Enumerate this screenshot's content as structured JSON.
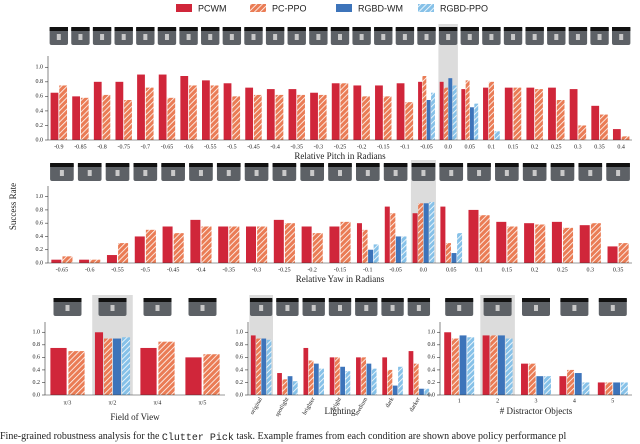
{
  "legend": [
    {
      "name": "PCWM",
      "color": "#d0263a",
      "hatch": false
    },
    {
      "name": "PC-PPO",
      "color": "#ea7c55",
      "hatch": true
    },
    {
      "name": "RGBD-WM",
      "color": "#3d74ba",
      "hatch": false
    },
    {
      "name": "RGBD-PPO",
      "color": "#86c1e8",
      "hatch": true
    }
  ],
  "chart_data": [
    {
      "type": "bar",
      "xlabel": "Relative Pitch in Radians",
      "highlight": "0.0",
      "categories": [
        "-0.9",
        "-0.85",
        "-0.8",
        "-0.75",
        "-0.7",
        "-0.65",
        "-0.6",
        "-0.55",
        "-0.5",
        "-0.45",
        "-0.4",
        "-0.35",
        "-0.3",
        "-0.25",
        "-0.2",
        "-0.15",
        "-0.1",
        "-0.05",
        "0.0",
        "0.05",
        "0.1",
        "0.15",
        "0.2",
        "0.25",
        "0.3",
        "0.35",
        "0.4"
      ],
      "series": [
        {
          "values": [
            0.65,
            0.6,
            0.8,
            0.8,
            0.9,
            0.9,
            0.88,
            0.82,
            0.78,
            0.72,
            0.7,
            0.7,
            0.65,
            0.78,
            0.75,
            0.75,
            0.78,
            0.8,
            0.8,
            0.7,
            0.72,
            0.72,
            0.72,
            0.72,
            0.7,
            0.47,
            0.15
          ]
        },
        {
          "values": [
            0.75,
            0.58,
            0.62,
            0.55,
            0.72,
            0.58,
            0.75,
            0.75,
            0.6,
            0.62,
            0.62,
            0.62,
            0.62,
            0.78,
            0.6,
            0.6,
            0.52,
            0.88,
            0.72,
            0.82,
            0.8,
            0.72,
            0.7,
            0.55,
            0.2,
            0.35,
            0.05
          ]
        },
        {
          "values": [
            null,
            null,
            null,
            null,
            null,
            null,
            null,
            null,
            null,
            null,
            null,
            null,
            null,
            null,
            null,
            null,
            null,
            0.55,
            0.85,
            0.45,
            null,
            null,
            null,
            null,
            null,
            null,
            null
          ]
        },
        {
          "values": [
            null,
            null,
            null,
            null,
            null,
            null,
            null,
            null,
            null,
            null,
            null,
            null,
            null,
            null,
            null,
            null,
            null,
            0.65,
            0.75,
            0.5,
            0.12,
            null,
            null,
            null,
            null,
            null,
            null
          ]
        }
      ],
      "ylim": [
        0,
        1.1
      ],
      "yticks": [
        {
          "value": 0,
          "label": "0.0"
        },
        0.2,
        0.4,
        0.6,
        0.8,
        {
          "value": 1,
          "label": "1.0"
        }
      ]
    },
    {
      "type": "bar",
      "xlabel": "Relative Yaw in Radians",
      "ylabel": "Success Rate",
      "highlight": "0.0",
      "categories": [
        "-0.65",
        "-0.6",
        "-0.55",
        "-0.5",
        "-0.45",
        "-0.4",
        "-0.35",
        "-0.3",
        "-0.25",
        "-0.2",
        "-0.15",
        "-0.1",
        "-0.05",
        "0.0",
        "0.05",
        "0.1",
        "0.15",
        "0.2",
        "0.25",
        "0.3",
        "0.35"
      ],
      "series": [
        {
          "values": [
            0.05,
            0.05,
            0.12,
            0.4,
            0.55,
            0.65,
            0.55,
            0.55,
            0.65,
            0.55,
            0.55,
            0.6,
            0.85,
            0.75,
            0.85,
            0.8,
            0.62,
            0.6,
            0.62,
            0.57,
            0.25
          ]
        },
        {
          "values": [
            0.1,
            0.05,
            0.3,
            0.5,
            0.45,
            0.55,
            0.55,
            0.55,
            0.6,
            0.45,
            0.62,
            0.5,
            0.75,
            0.9,
            0.3,
            0.72,
            0.55,
            0.58,
            0.53,
            0.6,
            0.3
          ]
        },
        {
          "values": [
            null,
            null,
            null,
            null,
            null,
            null,
            null,
            null,
            null,
            null,
            null,
            0.2,
            0.4,
            0.9,
            0.15,
            null,
            null,
            null,
            null,
            null,
            null
          ]
        },
        {
          "values": [
            null,
            null,
            null,
            null,
            null,
            null,
            null,
            null,
            null,
            null,
            null,
            0.28,
            0.4,
            0.92,
            0.45,
            null,
            null,
            null,
            null,
            null,
            null
          ]
        }
      ],
      "ylim": [
        0,
        1.1
      ],
      "yticks": [
        {
          "value": 0,
          "label": "0.0"
        },
        0.2,
        0.4,
        0.6,
        0.8,
        {
          "value": 1,
          "label": "1.0"
        }
      ]
    },
    {
      "type": "bar",
      "xlabel": "Field of View",
      "highlight": "π/2",
      "categories": [
        "π/3",
        "π/2",
        "π/4",
        "π/5"
      ],
      "series": [
        {
          "values": [
            0.75,
            1.0,
            0.75,
            0.6
          ]
        },
        {
          "values": [
            0.7,
            0.9,
            0.85,
            0.65
          ]
        },
        {
          "values": [
            null,
            0.9,
            null,
            null
          ]
        },
        {
          "values": [
            null,
            0.92,
            null,
            null
          ]
        }
      ],
      "ylim": [
        0,
        1.1
      ],
      "yticks": [
        {
          "value": 0,
          "label": "0.0"
        },
        0.2,
        0.4,
        0.6,
        0.8,
        {
          "value": 1,
          "label": "1.0"
        }
      ]
    },
    {
      "type": "bar",
      "xlabel": "Lighting",
      "highlight": "original",
      "xtick_rotation": 60,
      "categories": [
        "original",
        "spotlight",
        "brighter",
        "bright",
        "medium",
        "dark",
        "darker"
      ],
      "series": [
        {
          "values": [
            0.95,
            0.35,
            0.75,
            0.6,
            0.6,
            0.6,
            0.7
          ]
        },
        {
          "values": [
            0.9,
            0.25,
            0.55,
            0.6,
            0.6,
            0.4,
            0.5
          ]
        },
        {
          "values": [
            0.9,
            0.3,
            0.5,
            0.45,
            0.5,
            0.15,
            0.1
          ]
        },
        {
          "values": [
            0.88,
            0.22,
            0.42,
            0.38,
            0.42,
            0.45,
            0.1
          ]
        }
      ],
      "ylim": [
        0,
        1.1
      ],
      "yticks": [
        {
          "value": 0,
          "label": "0.0"
        },
        0.2,
        0.4,
        0.6,
        0.8,
        {
          "value": 1,
          "label": "1.0"
        }
      ]
    },
    {
      "type": "bar",
      "xlabel": "# Distractor Objects",
      "highlight": "2",
      "categories": [
        "1",
        "2",
        "3",
        "4",
        "5"
      ],
      "series": [
        {
          "values": [
            1.0,
            0.95,
            0.5,
            0.3,
            0.2
          ]
        },
        {
          "values": [
            0.9,
            0.95,
            0.5,
            0.4,
            0.2
          ]
        },
        {
          "values": [
            0.95,
            0.95,
            0.3,
            0.35,
            0.2
          ]
        },
        {
          "values": [
            0.92,
            0.9,
            0.3,
            0.2,
            0.2
          ]
        }
      ],
      "ylim": [
        0,
        1.1
      ],
      "yticks": [
        {
          "value": 0,
          "label": "0.0"
        },
        0.2,
        0.4,
        0.6,
        0.8,
        {
          "value": 1,
          "label": "1.0"
        }
      ]
    }
  ],
  "caption": {
    "before": "Fine-grained robustness analysis for the ",
    "code": "Clutter Pick",
    "after": " task. Example frames from each condition are shown above policy performance pl"
  }
}
